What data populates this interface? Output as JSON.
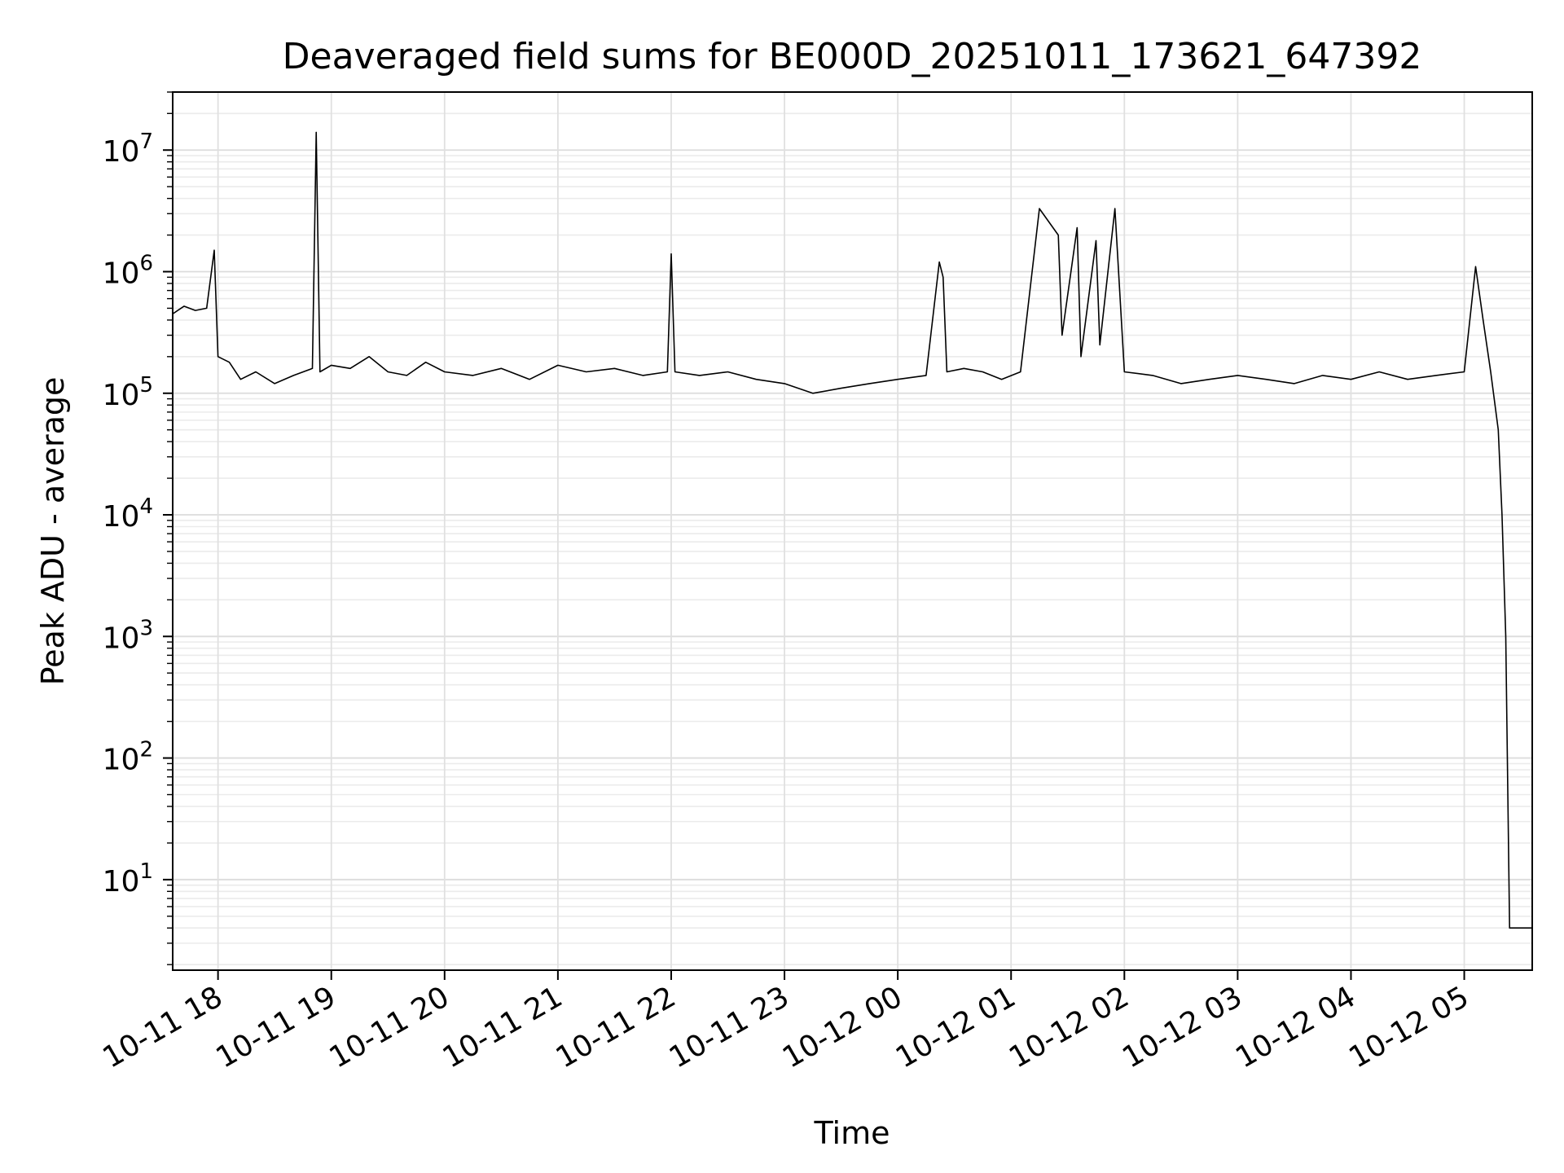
{
  "chart_data": {
    "type": "line",
    "title": "Deaveraged field sums for BE000D_20251011_173621_647392",
    "xlabel": "Time",
    "ylabel": "Peak ADU - average",
    "yscale": "log",
    "grid": true,
    "line_color": "#000000",
    "xlim": [
      "2025-10-11 17:36",
      "2025-10-12 05:36"
    ],
    "ylim": [
      1.8,
      30000000
    ],
    "x_ticks": [
      {
        "value": "2025-10-11 18:00",
        "label": "10-11 18"
      },
      {
        "value": "2025-10-11 19:00",
        "label": "10-11 19"
      },
      {
        "value": "2025-10-11 20:00",
        "label": "10-11 20"
      },
      {
        "value": "2025-10-11 21:00",
        "label": "10-11 21"
      },
      {
        "value": "2025-10-11 22:00",
        "label": "10-11 22"
      },
      {
        "value": "2025-10-11 23:00",
        "label": "10-11 23"
      },
      {
        "value": "2025-10-12 00:00",
        "label": "10-12 00"
      },
      {
        "value": "2025-10-12 01:00",
        "label": "10-12 01"
      },
      {
        "value": "2025-10-12 02:00",
        "label": "10-12 02"
      },
      {
        "value": "2025-10-12 03:00",
        "label": "10-12 03"
      },
      {
        "value": "2025-10-12 04:00",
        "label": "10-12 04"
      },
      {
        "value": "2025-10-12 05:00",
        "label": "10-12 05"
      }
    ],
    "y_ticks": [
      {
        "value": 10,
        "base": "10",
        "exp": "1"
      },
      {
        "value": 100,
        "base": "10",
        "exp": "2"
      },
      {
        "value": 1000,
        "base": "10",
        "exp": "3"
      },
      {
        "value": 10000,
        "base": "10",
        "exp": "4"
      },
      {
        "value": 100000,
        "base": "10",
        "exp": "5"
      },
      {
        "value": 1000000,
        "base": "10",
        "exp": "6"
      },
      {
        "value": 10000000,
        "base": "10",
        "exp": "7"
      }
    ],
    "series": [
      {
        "x": [
          "2025-10-11 17:36",
          "2025-10-11 17:42",
          "2025-10-11 17:48",
          "2025-10-11 17:54",
          "2025-10-11 17:58",
          "2025-10-11 18:00",
          "2025-10-11 18:06",
          "2025-10-11 18:12",
          "2025-10-11 18:20",
          "2025-10-11 18:30",
          "2025-10-11 18:40",
          "2025-10-11 18:50",
          "2025-10-11 18:52",
          "2025-10-11 18:54",
          "2025-10-11 19:00",
          "2025-10-11 19:10",
          "2025-10-11 19:20",
          "2025-10-11 19:30",
          "2025-10-11 19:40",
          "2025-10-11 19:50",
          "2025-10-11 20:00",
          "2025-10-11 20:15",
          "2025-10-11 20:30",
          "2025-10-11 20:45",
          "2025-10-11 21:00",
          "2025-10-11 21:15",
          "2025-10-11 21:30",
          "2025-10-11 21:45",
          "2025-10-11 21:58",
          "2025-10-11 22:00",
          "2025-10-11 22:02",
          "2025-10-11 22:15",
          "2025-10-11 22:30",
          "2025-10-11 22:45",
          "2025-10-11 23:00",
          "2025-10-11 23:15",
          "2025-10-11 23:30",
          "2025-10-11 23:45",
          "2025-10-12 00:00",
          "2025-10-12 00:15",
          "2025-10-12 00:22",
          "2025-10-12 00:24",
          "2025-10-12 00:26",
          "2025-10-12 00:35",
          "2025-10-12 00:45",
          "2025-10-12 00:55",
          "2025-10-12 01:05",
          "2025-10-12 01:15",
          "2025-10-12 01:25",
          "2025-10-12 01:27",
          "2025-10-12 01:35",
          "2025-10-12 01:37",
          "2025-10-12 01:45",
          "2025-10-12 01:47",
          "2025-10-12 01:55",
          "2025-10-12 02:00",
          "2025-10-12 02:15",
          "2025-10-12 02:30",
          "2025-10-12 02:45",
          "2025-10-12 03:00",
          "2025-10-12 03:15",
          "2025-10-12 03:30",
          "2025-10-12 03:45",
          "2025-10-12 04:00",
          "2025-10-12 04:15",
          "2025-10-12 04:30",
          "2025-10-12 04:45",
          "2025-10-12 05:00",
          "2025-10-12 05:06",
          "2025-10-12 05:10",
          "2025-10-12 05:14",
          "2025-10-12 05:18",
          "2025-10-12 05:20",
          "2025-10-12 05:22",
          "2025-10-12 05:24",
          "2025-10-12 05:26",
          "2025-10-12 05:36"
        ],
        "y": [
          450000,
          520000,
          480000,
          500000,
          1500000,
          200000,
          180000,
          130000,
          150000,
          120000,
          140000,
          160000,
          14000000,
          150000,
          170000,
          160000,
          200000,
          150000,
          140000,
          180000,
          150000,
          140000,
          160000,
          130000,
          170000,
          150000,
          160000,
          140000,
          150000,
          1400000,
          150000,
          140000,
          150000,
          130000,
          120000,
          100000,
          110000,
          120000,
          130000,
          140000,
          1200000,
          900000,
          150000,
          160000,
          150000,
          130000,
          150000,
          3300000,
          2000000,
          300000,
          2300000,
          200000,
          1800000,
          250000,
          3300000,
          150000,
          140000,
          120000,
          130000,
          140000,
          130000,
          120000,
          140000,
          130000,
          150000,
          130000,
          140000,
          150000,
          1100000,
          400000,
          150000,
          50000,
          10000,
          1000,
          4,
          4,
          4
        ]
      }
    ]
  }
}
